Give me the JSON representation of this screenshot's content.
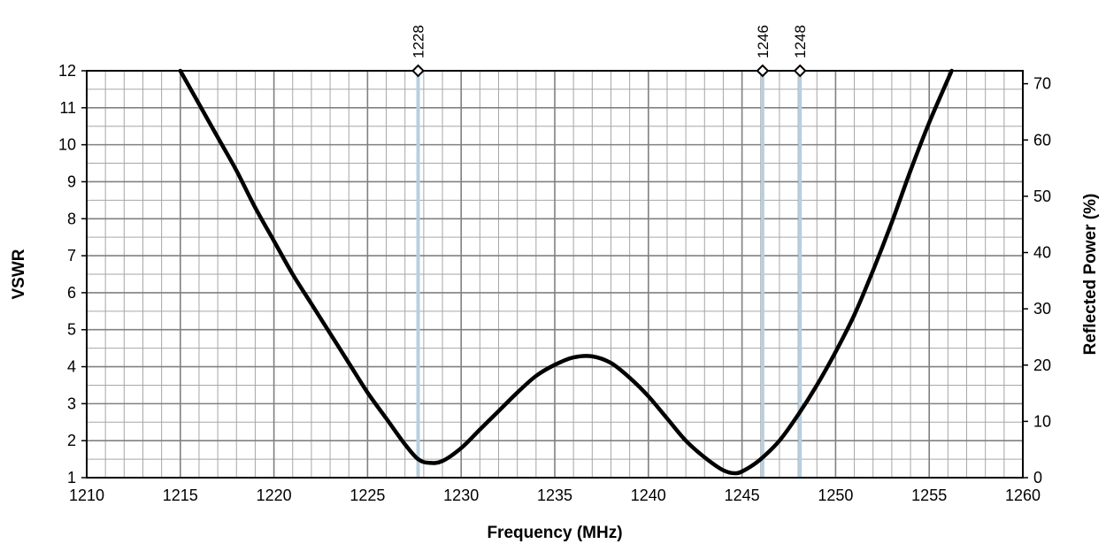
{
  "chart_data": {
    "type": "line",
    "title": "",
    "xlabel": "Frequency (MHz)",
    "ylabel": "VSWR",
    "y2label": "Reflected Power (%)",
    "xlim": [
      1210,
      1260
    ],
    "ylim": [
      1,
      12
    ],
    "y2lim": [
      0,
      72.3
    ],
    "x_ticks": [
      1210,
      1215,
      1220,
      1225,
      1230,
      1235,
      1240,
      1245,
      1250,
      1255,
      1260
    ],
    "y_ticks": [
      1,
      2,
      3,
      4,
      5,
      6,
      7,
      8,
      9,
      10,
      11,
      12
    ],
    "y2_ticks": [
      0,
      10,
      20,
      30,
      40,
      50,
      60,
      70
    ],
    "grid": true,
    "series": [
      {
        "x": [
          1215.0,
          1216.0,
          1217.0,
          1218.0,
          1219.0,
          1220.0,
          1221.0,
          1222.0,
          1223.0,
          1224.0,
          1225.0,
          1226.0,
          1227.0,
          1227.7,
          1228.3,
          1229.0,
          1230.0,
          1231.0,
          1232.0,
          1233.0,
          1234.0,
          1235.0,
          1236.0,
          1237.0,
          1238.0,
          1239.0,
          1240.0,
          1241.0,
          1242.0,
          1243.0,
          1244.0,
          1244.7,
          1245.3,
          1246.0,
          1247.0,
          1248.0,
          1249.0,
          1250.0,
          1251.0,
          1252.0,
          1253.0,
          1254.0,
          1255.0,
          1256.2
        ],
        "values": [
          12.0,
          11.1,
          10.2,
          9.3,
          8.3,
          7.4,
          6.5,
          5.7,
          4.9,
          4.1,
          3.3,
          2.6,
          1.9,
          1.5,
          1.4,
          1.45,
          1.8,
          2.3,
          2.8,
          3.3,
          3.75,
          4.05,
          4.25,
          4.28,
          4.1,
          3.7,
          3.2,
          2.6,
          2.0,
          1.55,
          1.2,
          1.12,
          1.25,
          1.5,
          2.0,
          2.7,
          3.5,
          4.4,
          5.4,
          6.6,
          7.9,
          9.3,
          10.6,
          12.0
        ]
      }
    ],
    "markers": [
      {
        "x": 1227.7,
        "label": "1228"
      },
      {
        "x": 1246.1,
        "label": "1246"
      },
      {
        "x": 1248.1,
        "label": "1248"
      }
    ],
    "colors": {
      "curve": "#000000",
      "marker_line": "#b8cfe0",
      "grid_major": "#808080",
      "grid_minor": "#a6a6a6"
    }
  }
}
